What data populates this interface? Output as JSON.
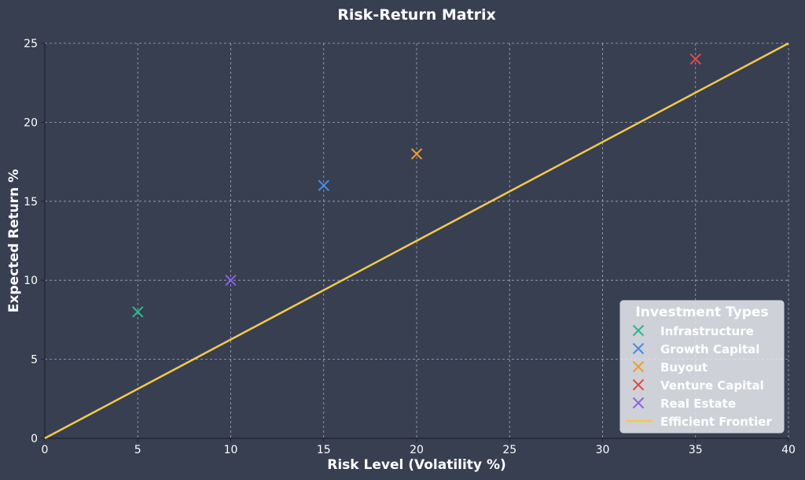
{
  "chart_data": {
    "type": "scatter",
    "title": "Risk-Return Matrix",
    "xlabel": "Risk Level (Volatility %)",
    "ylabel": "Expected Return %",
    "xlim": [
      0,
      40
    ],
    "ylim": [
      0,
      25
    ],
    "xticks": [
      0,
      5,
      10,
      15,
      20,
      25,
      30,
      35,
      40
    ],
    "yticks": [
      0,
      5,
      10,
      15,
      20,
      25
    ],
    "grid": true,
    "legend": {
      "title": "Investment Types",
      "placement": "bottom-right"
    },
    "series": [
      {
        "name": "Infrastructure",
        "marker": "x",
        "color": "#2bb88a",
        "points": [
          {
            "x": 5,
            "y": 8
          }
        ]
      },
      {
        "name": "Growth Capital",
        "marker": "x",
        "color": "#4a8be8",
        "points": [
          {
            "x": 15,
            "y": 16
          }
        ]
      },
      {
        "name": "Buyout",
        "marker": "x",
        "color": "#ef9f27",
        "points": [
          {
            "x": 20,
            "y": 18
          }
        ]
      },
      {
        "name": "Venture Capital",
        "marker": "x",
        "color": "#e24b4a",
        "points": [
          {
            "x": 35,
            "y": 24
          }
        ]
      },
      {
        "name": "Real Estate",
        "marker": "x",
        "color": "#8a63e8",
        "points": [
          {
            "x": 10,
            "y": 10
          }
        ]
      }
    ],
    "lines": [
      {
        "name": "Efficient Frontier",
        "color": "#f5c84c",
        "points": [
          {
            "x": 0,
            "y": 0
          },
          {
            "x": 40,
            "y": 25
          }
        ]
      }
    ]
  }
}
